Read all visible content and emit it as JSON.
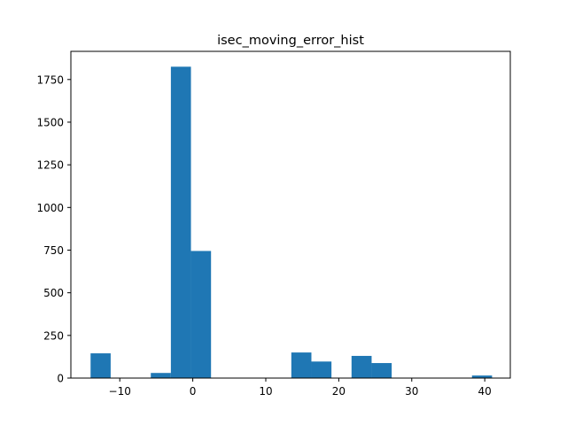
{
  "chart_data": {
    "type": "bar",
    "title": "isec_moving_error_hist",
    "xlabel": "",
    "ylabel": "",
    "xlim": [
      -16.7,
      43.5
    ],
    "ylim": [
      0,
      1915
    ],
    "grid": false,
    "legend": "none",
    "bar_color": "#1f77b4",
    "bin_width": 2.75,
    "bins": [
      {
        "left": -14.0,
        "count": 145
      },
      {
        "left": -11.25,
        "count": 0
      },
      {
        "left": -8.5,
        "count": 0
      },
      {
        "left": -5.75,
        "count": 30
      },
      {
        "left": -3.0,
        "count": 1825
      },
      {
        "left": -0.25,
        "count": 745
      },
      {
        "left": 2.5,
        "count": 0
      },
      {
        "left": 5.25,
        "count": 0
      },
      {
        "left": 8.0,
        "count": 0
      },
      {
        "left": 10.75,
        "count": 0
      },
      {
        "left": 13.5,
        "count": 150
      },
      {
        "left": 16.25,
        "count": 97
      },
      {
        "left": 19.0,
        "count": 0
      },
      {
        "left": 21.75,
        "count": 130
      },
      {
        "left": 24.5,
        "count": 88
      },
      {
        "left": 27.25,
        "count": 0
      },
      {
        "left": 30.0,
        "count": 0
      },
      {
        "left": 32.75,
        "count": 0
      },
      {
        "left": 35.5,
        "count": 0
      },
      {
        "left": 38.25,
        "count": 15
      }
    ],
    "x_ticks": [
      {
        "value": -10,
        "label": "−10"
      },
      {
        "value": 0,
        "label": "0"
      },
      {
        "value": 10,
        "label": "10"
      },
      {
        "value": 20,
        "label": "20"
      },
      {
        "value": 30,
        "label": "30"
      },
      {
        "value": 40,
        "label": "40"
      }
    ],
    "y_ticks": [
      {
        "value": 0,
        "label": "0"
      },
      {
        "value": 250,
        "label": "250"
      },
      {
        "value": 500,
        "label": "500"
      },
      {
        "value": 750,
        "label": "750"
      },
      {
        "value": 1000,
        "label": "1000"
      },
      {
        "value": 1250,
        "label": "1250"
      },
      {
        "value": 1500,
        "label": "1500"
      },
      {
        "value": 1750,
        "label": "1750"
      }
    ]
  }
}
